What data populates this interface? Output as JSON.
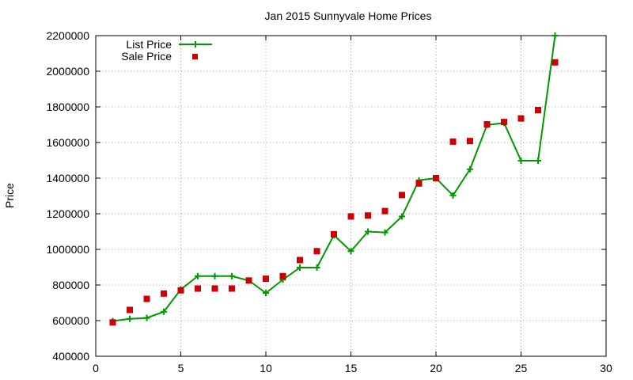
{
  "chart_data": {
    "type": "line",
    "title": "Jan 2015 Sunnyvale Home Prices",
    "xlabel": "",
    "ylabel": "Price",
    "xlim": [
      0,
      30
    ],
    "ylim": [
      400000,
      2200000
    ],
    "x_ticks": [
      0,
      5,
      10,
      15,
      20,
      25,
      30
    ],
    "y_ticks": [
      400000,
      600000,
      800000,
      1000000,
      1200000,
      1400000,
      1600000,
      1800000,
      2000000,
      2200000
    ],
    "grid": true,
    "legend_position": "top-left",
    "series": [
      {
        "name": "List Price",
        "style": "line-with-plus-markers",
        "color": "#009900",
        "x": [
          1,
          2,
          3,
          4,
          5,
          6,
          7,
          8,
          9,
          10,
          11,
          12,
          13,
          14,
          15,
          16,
          17,
          18,
          19,
          20,
          21,
          22,
          23,
          24,
          25,
          26,
          27
        ],
        "values": [
          598000,
          610000,
          615000,
          650000,
          775000,
          850000,
          850000,
          850000,
          825000,
          755000,
          830000,
          898000,
          898000,
          1080000,
          990000,
          1100000,
          1095000,
          1185000,
          1388000,
          1400000,
          1303000,
          1450000,
          1698000,
          1710000,
          1498000,
          1498000,
          2200000
        ]
      },
      {
        "name": "Sale Price",
        "style": "square-markers",
        "color": "#cc0000",
        "x": [
          1,
          2,
          3,
          4,
          5,
          6,
          7,
          8,
          9,
          10,
          11,
          12,
          13,
          14,
          15,
          16,
          17,
          18,
          19,
          20,
          21,
          22,
          23,
          24,
          25,
          26,
          27
        ],
        "values": [
          590000,
          660000,
          722000,
          752000,
          770000,
          780000,
          780000,
          780000,
          825000,
          835000,
          850000,
          940000,
          990000,
          1085000,
          1185000,
          1190000,
          1215000,
          1305000,
          1370000,
          1400000,
          1605000,
          1608000,
          1702000,
          1715000,
          1735000,
          1782000,
          2050000
        ]
      }
    ]
  }
}
